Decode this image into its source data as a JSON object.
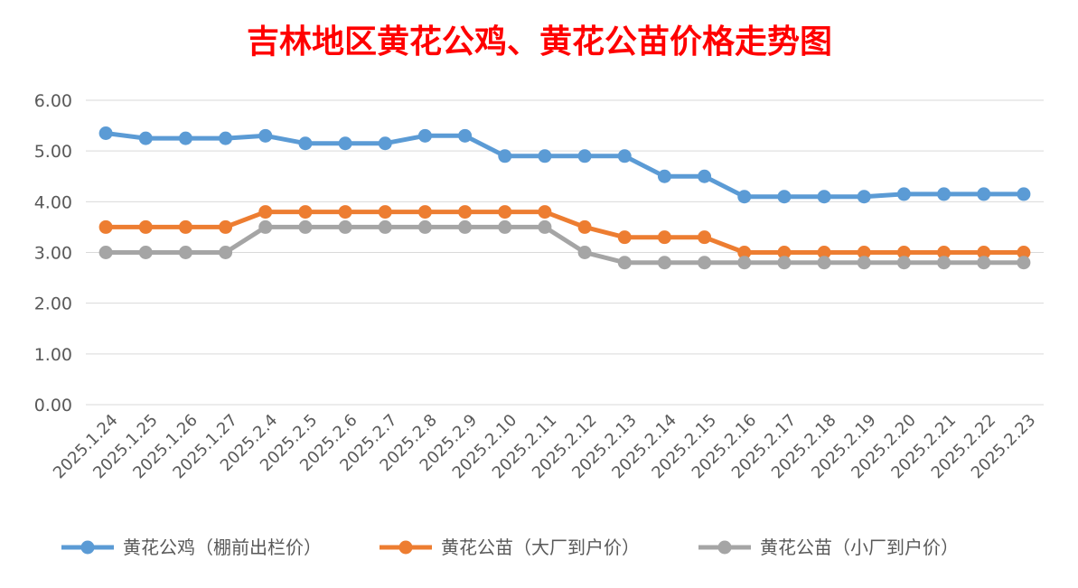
{
  "chart_data": {
    "type": "line",
    "title": "吉林地区黄花公鸡、黄花公苗价格走势图",
    "title_color": "#FF0000",
    "xlabel": "",
    "ylabel": "",
    "ylim": [
      0,
      6
    ],
    "y_ticks": [
      "0.00",
      "1.00",
      "2.00",
      "3.00",
      "4.00",
      "5.00",
      "6.00"
    ],
    "grid": true,
    "legend_position": "bottom",
    "categories": [
      "2025.1.24",
      "2025.1.25",
      "2025.1.26",
      "2025.1.27",
      "2025.2.4",
      "2025.2.5",
      "2025.2.6",
      "2025.2.7",
      "2025.2.8",
      "2025.2.9",
      "2025.2.10",
      "2025.2.11",
      "2025.2.12",
      "2025.2.13",
      "2025.2.14",
      "2025.2.15",
      "2025.2.16",
      "2025.2.17",
      "2025.2.18",
      "2025.2.19",
      "2025.2.20",
      "2025.2.21",
      "2025.2.22",
      "2025.2.23"
    ],
    "series": [
      {
        "name": "黄花公鸡（棚前出栏价）",
        "color": "#5B9BD5",
        "values": [
          5.35,
          5.25,
          5.25,
          5.25,
          5.3,
          5.15,
          5.15,
          5.15,
          5.3,
          5.3,
          4.9,
          4.9,
          4.9,
          4.9,
          4.5,
          4.5,
          4.1,
          4.1,
          4.1,
          4.1,
          4.15,
          4.15,
          4.15,
          4.15
        ]
      },
      {
        "name": "黄花公苗（大厂到户价）",
        "color": "#ED7D31",
        "values": [
          3.5,
          3.5,
          3.5,
          3.5,
          3.8,
          3.8,
          3.8,
          3.8,
          3.8,
          3.8,
          3.8,
          3.8,
          3.5,
          3.3,
          3.3,
          3.3,
          3.0,
          3.0,
          3.0,
          3.0,
          3.0,
          3.0,
          3.0,
          3.0
        ]
      },
      {
        "name": "黄花公苗（小厂到户价）",
        "color": "#A5A5A5",
        "values": [
          3.0,
          3.0,
          3.0,
          3.0,
          3.5,
          3.5,
          3.5,
          3.5,
          3.5,
          3.5,
          3.5,
          3.5,
          3.0,
          2.8,
          2.8,
          2.8,
          2.8,
          2.8,
          2.8,
          2.8,
          2.8,
          2.8,
          2.8,
          2.8
        ]
      }
    ]
  }
}
